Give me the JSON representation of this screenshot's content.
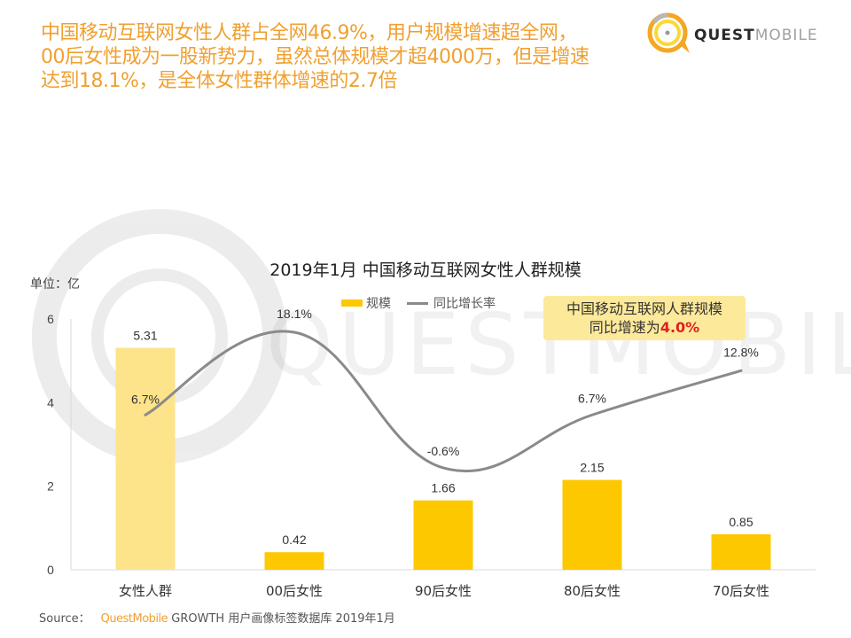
{
  "headline": {
    "lines": [
      "中国移动互联网女性人群占全网46.9%，用户规模增速超全网，",
      "00后女性成为一股新势力，虽然总体规模才超4000万，但是增速",
      "达到18.1%，是全体女性群体增速的2.7倍"
    ]
  },
  "logo": {
    "bold": "QUEST",
    "light": "MOBILE",
    "watermark": "QUESTMOBILE"
  },
  "callout": {
    "line1": "中国移动互联网人群规模",
    "line2_prefix": "同比增速为",
    "line2_value": "4.0%"
  },
  "source": {
    "label": "Source：",
    "brand": "QuestMobile",
    "text": "GROWTH 用户画像标签数据库 2019年1月"
  },
  "colors": {
    "accent": "#f0a030",
    "bar": "#fdc800",
    "bar_highlight": "#fde38a",
    "line": "#8a8a8a",
    "callout_bg": "#fde99a",
    "callout_value": "#e02020"
  },
  "chart_data": {
    "type": "bar",
    "title": "2019年1月 中国移动互联网女性人群规模",
    "unit_label": "单位：亿",
    "categories": [
      "女性人群",
      "00后女性",
      "90后女性",
      "80后女性",
      "70后女性"
    ],
    "series": [
      {
        "name": "规模",
        "type": "bar",
        "values": [
          5.31,
          0.42,
          1.66,
          2.15,
          0.85
        ],
        "labels": [
          "5.31",
          "0.42",
          "1.66",
          "2.15",
          "0.85"
        ]
      },
      {
        "name": "同比增长率",
        "type": "line",
        "smooth": true,
        "values": [
          6.7,
          18.1,
          -0.6,
          6.7,
          12.8
        ],
        "labels": [
          "6.7%",
          "18.1%",
          "-0.6%",
          "6.7%",
          "12.8%"
        ]
      }
    ],
    "y_ticks": [
      0,
      2,
      4,
      6
    ],
    "ylim": [
      0,
      6
    ],
    "legend": [
      "规模",
      "同比增长率"
    ],
    "legend_position": "top-center",
    "grid": false
  }
}
